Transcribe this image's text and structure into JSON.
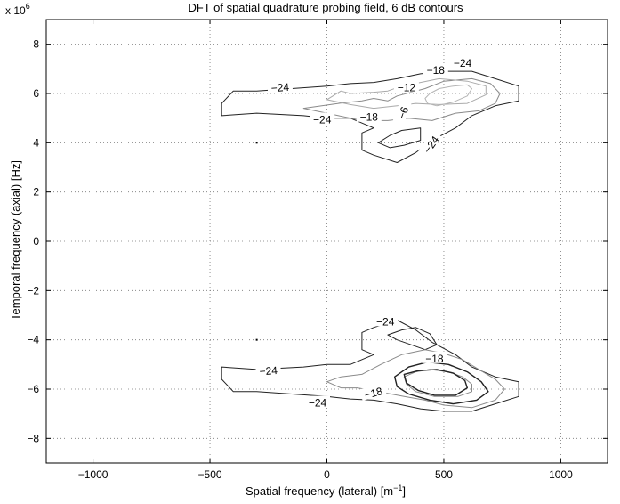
{
  "chart_data": {
    "type": "contour",
    "title": "DFT of spatial quadrature probing field, 6 dB contours",
    "xlabel": "Spatial frequency (lateral) [m",
    "xlabel_sup": "−1",
    "xlabel_end": "]",
    "ylabel": "Temporal frequency (axial) [Hz]",
    "y_exponent_base": "x 10",
    "y_exponent_power": "6",
    "xlim": [
      -1200,
      1200
    ],
    "ylim": [
      -9,
      9
    ],
    "xticks": [
      -1000,
      -500,
      0,
      500,
      1000
    ],
    "xtick_labels": [
      "−1000",
      "−500",
      "0",
      "500",
      "1000"
    ],
    "yticks": [
      -8,
      -6,
      -4,
      -2,
      0,
      2,
      4,
      6,
      8
    ],
    "ytick_labels": [
      "−8",
      "−6",
      "−4",
      "−2",
      "0",
      "2",
      "4",
      "6",
      "8"
    ],
    "grid": true,
    "grid_style": "dotted",
    "levels_db": [
      -24,
      -18,
      -12,
      -6
    ],
    "level_colors": {
      "-24": "#222222",
      "-18": "#8a8a8a",
      "-12": "#aaaaaa",
      "-6": "#b5b5b5"
    },
    "contours": [
      {
        "level": -24,
        "points": [
          [
            -450,
            5.6
          ],
          [
            -400,
            6.1
          ],
          [
            -300,
            6.1
          ],
          [
            -150,
            6.2
          ],
          [
            0,
            6.3
          ],
          [
            100,
            6.4
          ],
          [
            200,
            6.45
          ],
          [
            300,
            6.6
          ],
          [
            400,
            6.8
          ],
          [
            500,
            6.9
          ],
          [
            620,
            6.9
          ],
          [
            720,
            6.6
          ],
          [
            820,
            6.3
          ],
          [
            820,
            5.7
          ],
          [
            720,
            5.5
          ],
          [
            620,
            5.1
          ],
          [
            550,
            4.6
          ],
          [
            450,
            4.1
          ],
          [
            380,
            3.6
          ],
          [
            300,
            3.2
          ],
          [
            200,
            3.5
          ],
          [
            150,
            3.7
          ],
          [
            150,
            4.4
          ],
          [
            200,
            4.6
          ],
          [
            100,
            5.0
          ],
          [
            0,
            5.0
          ],
          [
            -100,
            5.1
          ],
          [
            -300,
            5.2
          ],
          [
            -450,
            5.1
          ]
        ]
      },
      {
        "level": -24,
        "points": [
          [
            220,
            4.0
          ],
          [
            270,
            4.3
          ],
          [
            320,
            4.5
          ],
          [
            400,
            4.6
          ],
          [
            400,
            4.1
          ],
          [
            330,
            3.9
          ],
          [
            270,
            3.8
          ]
        ]
      },
      {
        "level": -18,
        "points": [
          [
            -100,
            5.4
          ],
          [
            50,
            5.6
          ],
          [
            150,
            5.7
          ],
          [
            200,
            5.8
          ],
          [
            260,
            5.7
          ],
          [
            300,
            5.9
          ],
          [
            420,
            6.2
          ],
          [
            500,
            6.5
          ],
          [
            620,
            6.6
          ],
          [
            700,
            6.4
          ],
          [
            740,
            6.0
          ],
          [
            720,
            5.6
          ],
          [
            650,
            5.3
          ],
          [
            550,
            5.2
          ],
          [
            450,
            4.9
          ],
          [
            350,
            5.0
          ],
          [
            260,
            4.9
          ],
          [
            150,
            4.9
          ],
          [
            50,
            5.1
          ]
        ]
      },
      {
        "level": -12,
        "points": [
          [
            0,
            5.75
          ],
          [
            60,
            6.1
          ],
          [
            100,
            6.0
          ],
          [
            200,
            6.05
          ],
          [
            260,
            6.1
          ],
          [
            320,
            6.3
          ],
          [
            400,
            6.45
          ],
          [
            480,
            6.6
          ],
          [
            600,
            6.5
          ],
          [
            680,
            6.3
          ],
          [
            680,
            5.95
          ],
          [
            600,
            5.6
          ],
          [
            480,
            5.55
          ],
          [
            380,
            5.6
          ],
          [
            300,
            5.5
          ],
          [
            200,
            5.4
          ],
          [
            100,
            5.55
          ]
        ]
      },
      {
        "level": -6,
        "points": [
          [
            440,
            6.0
          ],
          [
            480,
            6.2
          ],
          [
            540,
            6.3
          ],
          [
            600,
            6.35
          ],
          [
            620,
            6.2
          ],
          [
            600,
            5.9
          ],
          [
            540,
            5.65
          ],
          [
            470,
            5.5
          ],
          [
            430,
            5.6
          ],
          [
            420,
            5.8
          ]
        ]
      },
      {
        "level": -24,
        "points": [
          [
            -450,
            -5.1
          ],
          [
            -300,
            -5.2
          ],
          [
            -100,
            -5.1
          ],
          [
            0,
            -5.0
          ],
          [
            100,
            -5.0
          ],
          [
            200,
            -4.6
          ],
          [
            150,
            -4.4
          ],
          [
            150,
            -3.7
          ],
          [
            200,
            -3.5
          ],
          [
            300,
            -3.2
          ],
          [
            380,
            -3.6
          ],
          [
            450,
            -4.1
          ],
          [
            550,
            -4.6
          ],
          [
            620,
            -5.1
          ],
          [
            720,
            -5.5
          ],
          [
            820,
            -5.7
          ],
          [
            820,
            -6.3
          ],
          [
            720,
            -6.6
          ],
          [
            620,
            -6.9
          ],
          [
            500,
            -6.9
          ],
          [
            400,
            -6.8
          ],
          [
            300,
            -6.6
          ],
          [
            200,
            -6.45
          ],
          [
            100,
            -6.4
          ],
          [
            0,
            -6.3
          ],
          [
            -150,
            -6.2
          ],
          [
            -300,
            -6.1
          ],
          [
            -400,
            -6.1
          ],
          [
            -450,
            -5.6
          ]
        ]
      },
      {
        "level": -24,
        "points": [
          [
            260,
            -3.8
          ],
          [
            320,
            -3.6
          ],
          [
            380,
            -3.5
          ],
          [
            440,
            -3.75
          ],
          [
            470,
            -4.2
          ],
          [
            420,
            -4.4
          ],
          [
            360,
            -4.2
          ],
          [
            300,
            -4.0
          ]
        ]
      },
      {
        "level": -18,
        "points": [
          [
            0,
            -5.7
          ],
          [
            60,
            -5.5
          ],
          [
            150,
            -5.4
          ],
          [
            230,
            -5.0
          ],
          [
            320,
            -4.6
          ],
          [
            420,
            -4.4
          ],
          [
            500,
            -4.55
          ],
          [
            580,
            -4.8
          ],
          [
            650,
            -5.2
          ],
          [
            720,
            -5.6
          ],
          [
            760,
            -6.0
          ],
          [
            720,
            -6.45
          ],
          [
            620,
            -6.75
          ],
          [
            500,
            -6.65
          ],
          [
            420,
            -6.45
          ],
          [
            330,
            -6.3
          ],
          [
            220,
            -6.1
          ],
          [
            130,
            -5.95
          ],
          [
            60,
            -5.95
          ]
        ]
      },
      {
        "level": -24,
        "points": [
          [
            290,
            -5.5
          ],
          [
            350,
            -5.1
          ],
          [
            430,
            -4.9
          ],
          [
            520,
            -5.0
          ],
          [
            600,
            -5.3
          ],
          [
            660,
            -5.7
          ],
          [
            690,
            -6.1
          ],
          [
            640,
            -6.45
          ],
          [
            540,
            -6.6
          ],
          [
            440,
            -6.45
          ],
          [
            350,
            -6.2
          ],
          [
            300,
            -5.9
          ]
        ],
        "width": 1.4
      },
      {
        "level": -18,
        "points": [
          [
            330,
            -5.5
          ],
          [
            380,
            -5.3
          ],
          [
            440,
            -5.2
          ],
          [
            520,
            -5.3
          ],
          [
            580,
            -5.5
          ],
          [
            620,
            -5.8
          ],
          [
            620,
            -6.1
          ],
          [
            560,
            -6.3
          ],
          [
            460,
            -6.3
          ],
          [
            380,
            -6.1
          ],
          [
            340,
            -5.8
          ]
        ]
      },
      {
        "level": -24,
        "points": [
          [
            330,
            -5.4
          ],
          [
            390,
            -5.25
          ],
          [
            470,
            -5.2
          ],
          [
            540,
            -5.35
          ],
          [
            590,
            -5.65
          ],
          [
            600,
            -5.95
          ],
          [
            550,
            -6.25
          ],
          [
            460,
            -6.25
          ],
          [
            390,
            -6.05
          ],
          [
            340,
            -5.75
          ]
        ],
        "width": 1.4
      }
    ],
    "labels": [
      {
        "text": "−24",
        "x": -200,
        "y": 6.2,
        "rot": -4
      },
      {
        "text": "−18",
        "x": 465,
        "y": 6.9,
        "rot": 0
      },
      {
        "text": "−24",
        "x": 580,
        "y": 7.2,
        "rot": 0
      },
      {
        "text": "−12",
        "x": 340,
        "y": 6.2,
        "rot": 0
      },
      {
        "text": "−6",
        "x": 330,
        "y": 5.2,
        "rot": -70
      },
      {
        "text": "−18",
        "x": 180,
        "y": 5.0,
        "rot": 0
      },
      {
        "text": "−24",
        "x": -20,
        "y": 4.9,
        "rot": 0
      },
      {
        "text": "−24",
        "x": 450,
        "y": 3.9,
        "rot": -55
      },
      {
        "text": "−24",
        "x": 250,
        "y": -3.3,
        "rot": 0
      },
      {
        "text": "−24",
        "x": -250,
        "y": -5.3,
        "rot": -4
      },
      {
        "text": "−18",
        "x": 460,
        "y": -4.8,
        "rot": 0
      },
      {
        "text": "−18",
        "x": 200,
        "y": -6.2,
        "rot": -15
      },
      {
        "text": "−24",
        "x": -40,
        "y": -6.6,
        "rot": 0
      }
    ],
    "dots": [
      {
        "x": -300,
        "y": 4.0
      },
      {
        "x": -300,
        "y": -4.0
      }
    ]
  }
}
